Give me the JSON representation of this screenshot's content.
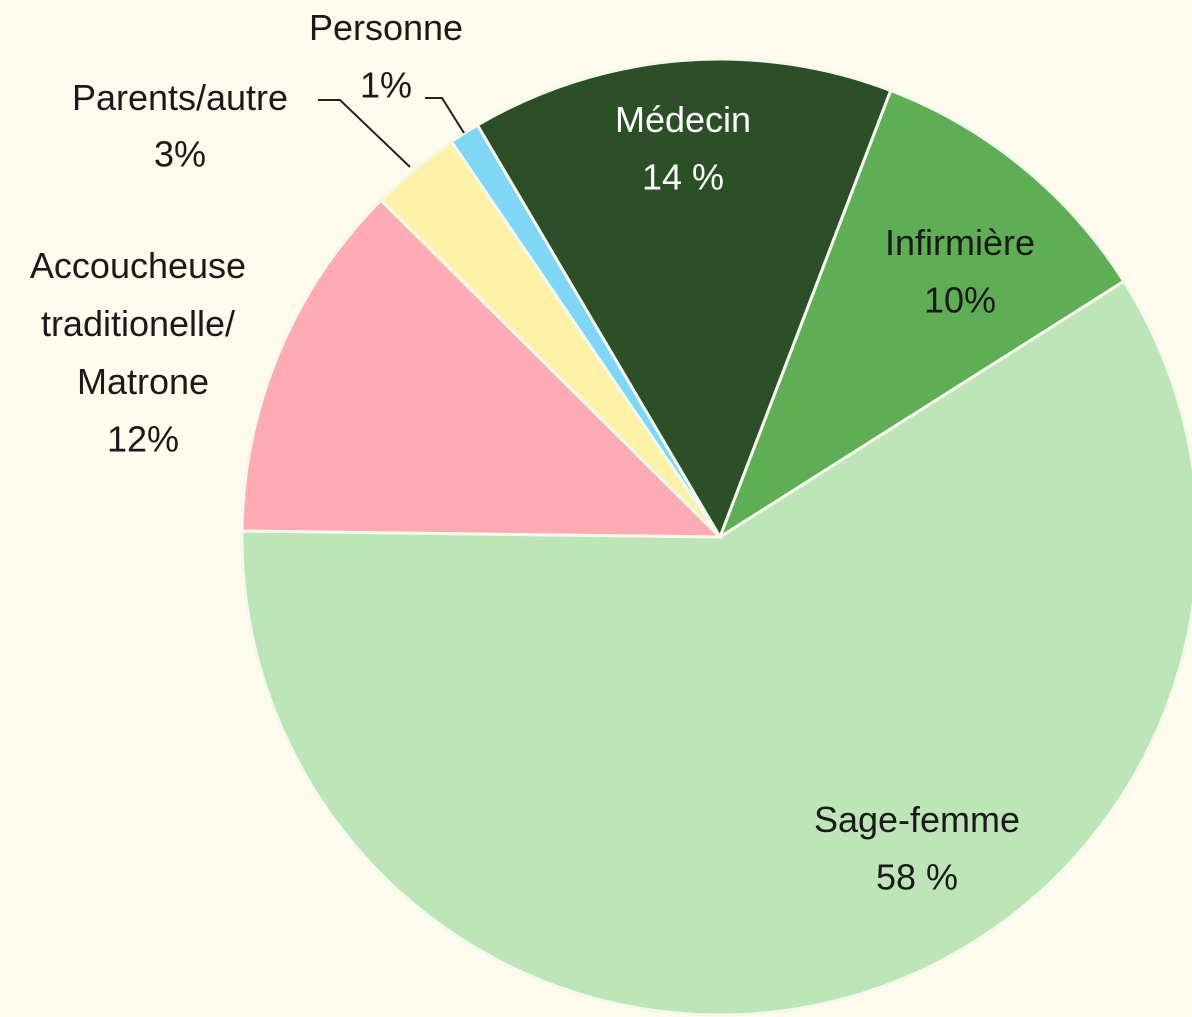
{
  "chart_data": {
    "type": "pie",
    "categories": [
      "Médecin",
      "Infirmière",
      "Sage-femme",
      "Accoucheuse traditionelle/ Matrone",
      "Parents/autre",
      "Personne"
    ],
    "values": [
      14,
      10,
      58,
      12,
      3,
      1
    ],
    "value_labels": [
      "14 %",
      "10%",
      "58 %",
      "12%",
      "3%",
      "1%"
    ],
    "colors": [
      "#2c4f27",
      "#5fad55",
      "#bde5b7",
      "#ffabb4",
      "#fff2a8",
      "#7fd6f5"
    ]
  }
}
